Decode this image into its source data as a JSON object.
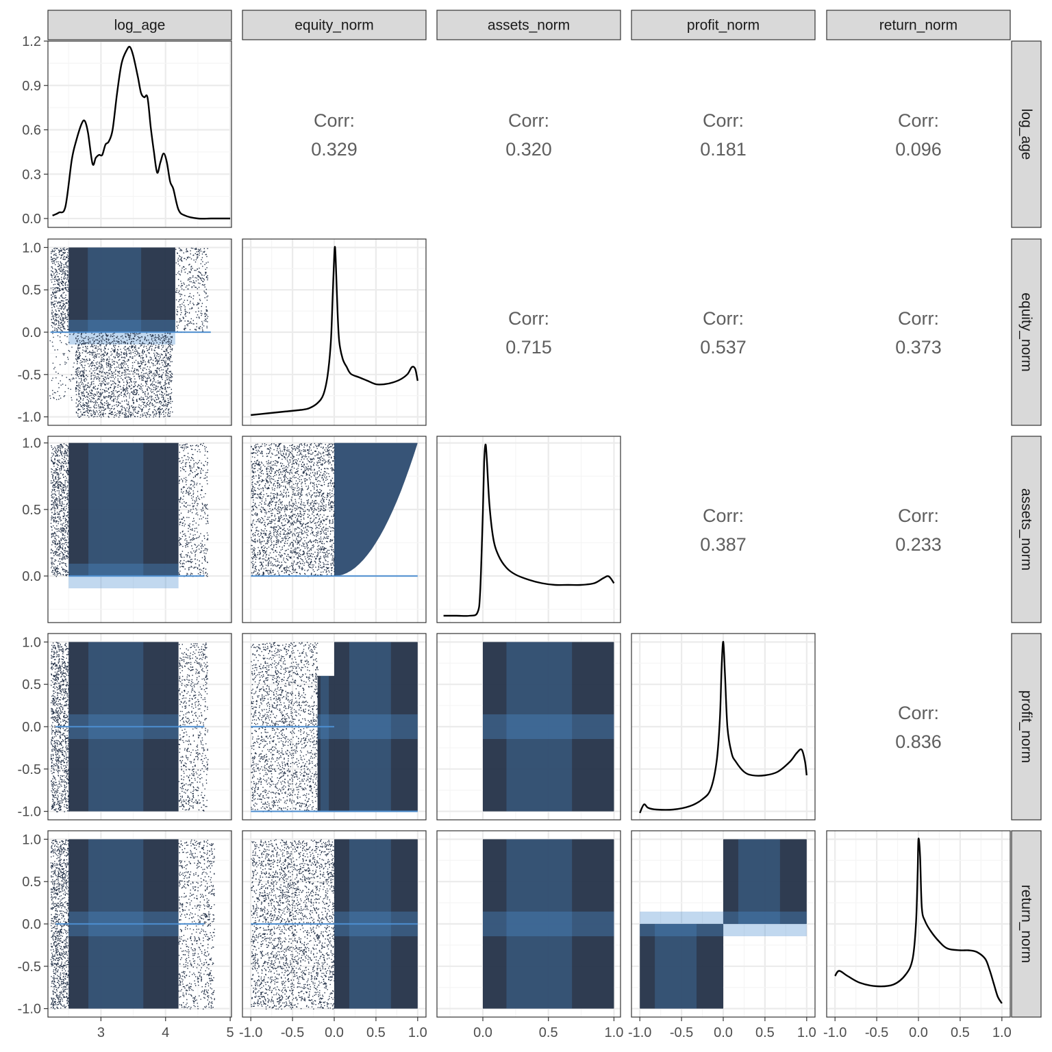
{
  "chart_data": {
    "type": "scatter-matrix",
    "variables": [
      "log_age",
      "equity_norm",
      "assets_norm",
      "profit_norm",
      "return_norm"
    ],
    "axes": {
      "log_age": {
        "lim": [
          2.18,
          5.02
        ],
        "ticks": [
          3,
          4,
          5
        ],
        "tick_labels": [
          "3",
          "4",
          "5"
        ]
      },
      "equity_norm": {
        "lim": [
          -1.1,
          1.1
        ],
        "ticks": [
          -1,
          -0.5,
          0,
          0.5,
          1
        ],
        "tick_labels": [
          "-1.0",
          "-0.5",
          "0.0",
          "0.5",
          "1.0"
        ]
      },
      "assets_norm": {
        "lim": [
          -0.35,
          1.05
        ],
        "ticks": [
          0,
          0.5,
          1
        ],
        "tick_labels": [
          "0.0",
          "0.5",
          "1.0"
        ]
      },
      "profit_norm": {
        "lim": [
          -1.1,
          1.1
        ],
        "ticks": [
          -1,
          -0.5,
          0,
          0.5,
          1
        ],
        "tick_labels": [
          "-1.0",
          "-0.5",
          "0.0",
          "0.5",
          "1.0"
        ]
      },
      "return_norm": {
        "lim": [
          -1.1,
          1.1
        ],
        "ticks": [
          -1,
          -0.5,
          0,
          0.5,
          1
        ],
        "tick_labels": [
          "-1.0",
          "-0.5",
          "0.0",
          "0.5",
          "1.0"
        ]
      }
    },
    "density_axis": {
      "lim": [
        -0.06,
        1.2
      ],
      "ticks": [
        0,
        0.3,
        0.6,
        0.9,
        1.2
      ],
      "tick_labels": [
        "0.0",
        "0.3",
        "0.6",
        "0.9",
        "1.2"
      ]
    },
    "corr_label": "Corr:",
    "correlations": [
      {
        "row": "log_age",
        "col": "equity_norm",
        "value": "0.329"
      },
      {
        "row": "log_age",
        "col": "assets_norm",
        "value": "0.320"
      },
      {
        "row": "log_age",
        "col": "profit_norm",
        "value": "0.181"
      },
      {
        "row": "log_age",
        "col": "return_norm",
        "value": "0.096"
      },
      {
        "row": "equity_norm",
        "col": "assets_norm",
        "value": "0.715"
      },
      {
        "row": "equity_norm",
        "col": "profit_norm",
        "value": "0.537"
      },
      {
        "row": "equity_norm",
        "col": "return_norm",
        "value": "0.373"
      },
      {
        "row": "assets_norm",
        "col": "profit_norm",
        "value": "0.387"
      },
      {
        "row": "assets_norm",
        "col": "return_norm",
        "value": "0.233"
      },
      {
        "row": "profit_norm",
        "col": "return_norm",
        "value": "0.836"
      }
    ],
    "densities": {
      "log_age": {
        "x": [
          2.25,
          2.35,
          2.45,
          2.55,
          2.62,
          2.7,
          2.75,
          2.8,
          2.87,
          2.92,
          2.97,
          3.02,
          3.07,
          3.12,
          3.18,
          3.25,
          3.32,
          3.4,
          3.45,
          3.5,
          3.57,
          3.62,
          3.67,
          3.72,
          3.77,
          3.82,
          3.87,
          3.92,
          3.97,
          4.02,
          4.07,
          4.12,
          4.2,
          4.3,
          4.5,
          4.7,
          4.85,
          5.0
        ],
        "y": [
          0.02,
          0.04,
          0.08,
          0.4,
          0.53,
          0.64,
          0.66,
          0.58,
          0.37,
          0.41,
          0.43,
          0.43,
          0.5,
          0.52,
          0.6,
          0.85,
          1.05,
          1.14,
          1.16,
          1.1,
          0.96,
          0.85,
          0.82,
          0.82,
          0.62,
          0.45,
          0.31,
          0.38,
          0.44,
          0.38,
          0.25,
          0.2,
          0.06,
          0.02,
          0.0,
          0.0,
          0.0,
          0.0
        ]
      },
      "equity_norm": {
        "x": [
          -1.0,
          -0.8,
          -0.6,
          -0.4,
          -0.3,
          -0.2,
          -0.13,
          -0.08,
          -0.04,
          -0.02,
          0.0,
          0.01,
          0.02,
          0.04,
          0.06,
          0.1,
          0.15,
          0.2,
          0.3,
          0.4,
          0.5,
          0.6,
          0.7,
          0.8,
          0.88,
          0.93,
          0.97,
          1.0
        ],
        "y": [
          0.02,
          0.03,
          0.04,
          0.05,
          0.06,
          0.09,
          0.14,
          0.25,
          0.45,
          0.7,
          0.95,
          1.0,
          0.9,
          0.62,
          0.45,
          0.35,
          0.3,
          0.26,
          0.24,
          0.22,
          0.2,
          0.2,
          0.21,
          0.23,
          0.26,
          0.3,
          0.29,
          0.22
        ]
      },
      "assets_norm": {
        "x": [
          -0.3,
          -0.2,
          -0.1,
          -0.04,
          -0.02,
          0.0,
          0.01,
          0.02,
          0.03,
          0.05,
          0.08,
          0.12,
          0.18,
          0.25,
          0.35,
          0.45,
          0.55,
          0.65,
          0.75,
          0.85,
          0.92,
          0.96,
          1.0
        ],
        "y": [
          0.0,
          0.0,
          0.0,
          0.02,
          0.15,
          0.6,
          0.9,
          1.0,
          0.92,
          0.65,
          0.45,
          0.35,
          0.28,
          0.24,
          0.21,
          0.19,
          0.18,
          0.18,
          0.18,
          0.19,
          0.22,
          0.23,
          0.19
        ]
      },
      "profit_norm": {
        "x": [
          -1.0,
          -0.95,
          -0.9,
          -0.8,
          -0.6,
          -0.4,
          -0.25,
          -0.15,
          -0.08,
          -0.04,
          -0.02,
          0.0,
          0.02,
          0.05,
          0.1,
          0.15,
          0.25,
          0.35,
          0.5,
          0.65,
          0.8,
          0.88,
          0.94,
          0.98,
          1.0
        ],
        "y": [
          0.0,
          0.05,
          0.03,
          0.02,
          0.02,
          0.04,
          0.08,
          0.14,
          0.3,
          0.55,
          0.85,
          1.0,
          0.82,
          0.5,
          0.35,
          0.3,
          0.24,
          0.22,
          0.22,
          0.24,
          0.3,
          0.35,
          0.37,
          0.3,
          0.22
        ]
      },
      "return_norm": {
        "x": [
          -1.0,
          -0.95,
          -0.85,
          -0.7,
          -0.5,
          -0.3,
          -0.15,
          -0.07,
          -0.03,
          -0.01,
          0.0,
          0.02,
          0.04,
          0.08,
          0.15,
          0.25,
          0.35,
          0.5,
          0.6,
          0.7,
          0.8,
          0.85,
          0.9,
          0.95,
          1.0
        ],
        "y": [
          0.2,
          0.23,
          0.2,
          0.16,
          0.14,
          0.15,
          0.21,
          0.3,
          0.5,
          0.8,
          1.0,
          0.9,
          0.6,
          0.52,
          0.46,
          0.4,
          0.36,
          0.35,
          0.35,
          0.34,
          0.3,
          0.24,
          0.16,
          0.08,
          0.04
        ]
      }
    },
    "scatter_panels": [
      {
        "row": "equity_norm",
        "col": "log_age",
        "regions": [
          {
            "x": [
              2.5,
              4.15
            ],
            "y": [
              0.0,
              1.0
            ],
            "density": 1.0
          },
          {
            "x": [
              2.22,
              2.5
            ],
            "y": [
              0.0,
              1.0
            ],
            "density": 0.45
          },
          {
            "x": [
              4.15,
              4.65
            ],
            "y": [
              0.0,
              1.0
            ],
            "density": 0.18
          },
          {
            "x": [
              2.6,
              4.1
            ],
            "y": [
              -1.0,
              0.0
            ],
            "density": 0.35
          },
          {
            "x": [
              2.2,
              2.6
            ],
            "y": [
              -0.8,
              0.0
            ],
            "density": 0.06
          }
        ],
        "lines": [
          {
            "y": 0,
            "x": [
              2.22,
              4.7
            ]
          }
        ]
      },
      {
        "row": "assets_norm",
        "col": "log_age",
        "regions": [
          {
            "x": [
              2.5,
              4.2
            ],
            "y": [
              0.0,
              1.0
            ],
            "density": 1.0
          },
          {
            "x": [
              2.22,
              2.5
            ],
            "y": [
              0.0,
              1.0
            ],
            "density": 0.45
          },
          {
            "x": [
              4.2,
              4.65
            ],
            "y": [
              0.0,
              1.0
            ],
            "density": 0.18
          }
        ],
        "lines": [
          {
            "y": 0,
            "x": [
              2.5,
              4.6
            ]
          }
        ]
      },
      {
        "row": "profit_norm",
        "col": "log_age",
        "regions": [
          {
            "x": [
              2.5,
              4.2
            ],
            "y": [
              -1.0,
              1.0
            ],
            "density": 1.0
          },
          {
            "x": [
              2.22,
              2.5
            ],
            "y": [
              -1.0,
              1.0
            ],
            "density": 0.45
          },
          {
            "x": [
              4.2,
              4.65
            ],
            "y": [
              -1.0,
              1.0
            ],
            "density": 0.18
          }
        ],
        "lines": [
          {
            "y": 0,
            "x": [
              2.3,
              4.6
            ]
          }
        ]
      },
      {
        "row": "return_norm",
        "col": "log_age",
        "regions": [
          {
            "x": [
              2.5,
              4.2
            ],
            "y": [
              -1.0,
              1.0
            ],
            "density": 1.0
          },
          {
            "x": [
              2.22,
              2.5
            ],
            "y": [
              -1.0,
              1.0
            ],
            "density": 0.45
          },
          {
            "x": [
              4.2,
              4.75
            ],
            "y": [
              -1.0,
              1.0
            ],
            "density": 0.18
          }
        ],
        "lines": [
          {
            "y": 0,
            "x": [
              2.3,
              4.6
            ]
          }
        ]
      },
      {
        "row": "assets_norm",
        "col": "equity_norm",
        "regions": [
          {
            "x": [
              0.0,
              1.0
            ],
            "y": [
              0.0,
              1.0
            ],
            "density": 1.0,
            "curve": "y>=x^2"
          },
          {
            "x": [
              -1.0,
              0.0
            ],
            "y": [
              0.0,
              1.0
            ],
            "density": 0.3
          }
        ],
        "lines": [
          {
            "y": 0,
            "x": [
              -1.0,
              1.0
            ]
          }
        ]
      },
      {
        "row": "profit_norm",
        "col": "equity_norm",
        "regions": [
          {
            "x": [
              0.0,
              1.0
            ],
            "y": [
              -1.0,
              1.0
            ],
            "density": 1.0
          },
          {
            "x": [
              -0.2,
              0.0
            ],
            "y": [
              -1.0,
              0.6
            ],
            "density": 0.8
          },
          {
            "x": [
              -1.0,
              -0.2
            ],
            "y": [
              -1.0,
              1.0
            ],
            "density": 0.22
          }
        ],
        "lines": [
          {
            "y": 0,
            "x": [
              -1.0,
              0.0
            ]
          },
          {
            "y": -1,
            "x": [
              -1.0,
              1.0
            ]
          }
        ]
      },
      {
        "row": "return_norm",
        "col": "equity_norm",
        "regions": [
          {
            "x": [
              0.0,
              1.0
            ],
            "y": [
              -1.0,
              1.0
            ],
            "density": 1.0
          },
          {
            "x": [
              -1.0,
              0.0
            ],
            "y": [
              -1.0,
              1.0
            ],
            "density": 0.25
          }
        ],
        "lines": [
          {
            "y": 0,
            "x": [
              -1.0,
              1.0
            ]
          }
        ]
      },
      {
        "row": "profit_norm",
        "col": "assets_norm",
        "regions": [
          {
            "x": [
              0.0,
              1.0
            ],
            "y": [
              -1.0,
              1.0
            ],
            "density": 1.0
          }
        ],
        "lines": []
      },
      {
        "row": "return_norm",
        "col": "assets_norm",
        "regions": [
          {
            "x": [
              0.0,
              1.0
            ],
            "y": [
              -1.0,
              1.0
            ],
            "density": 1.0
          }
        ],
        "lines": []
      },
      {
        "row": "return_norm",
        "col": "profit_norm",
        "regions": [
          {
            "x": [
              -1.0,
              0.0
            ],
            "y": [
              -1.0,
              0.0
            ],
            "density": 1.0
          },
          {
            "x": [
              0.0,
              1.0
            ],
            "y": [
              0.0,
              1.0
            ],
            "density": 1.0
          }
        ],
        "lines": []
      }
    ],
    "colors": {
      "point_dark": "#1f2d44",
      "point_light": "#4d8fd1",
      "panel_border": "#333333",
      "strip_fill": "#d9d9d9",
      "grid_major": "#ebebeb",
      "grid_minor": "#f5f5f5",
      "density_line": "#000000"
    },
    "grid": true
  }
}
